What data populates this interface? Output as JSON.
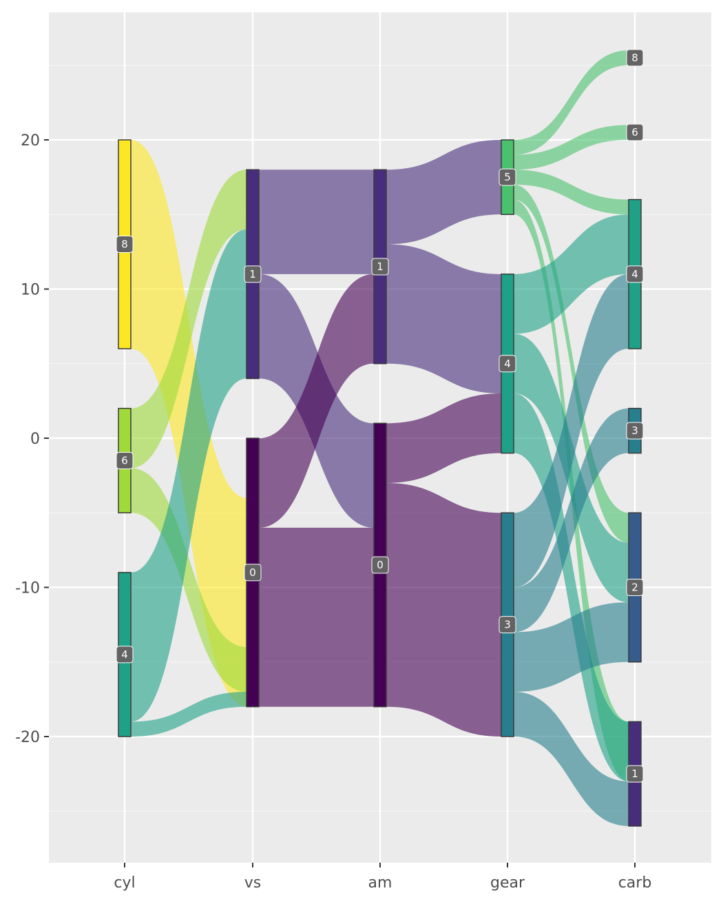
{
  "chart_data": {
    "type": "sankey",
    "title": "",
    "xlabel": "",
    "ylabel": "",
    "ylim": [
      -26,
      27
    ],
    "y_ticks": [
      20,
      10,
      0,
      -10,
      -20
    ],
    "y_tick_labels": [
      "20",
      "10",
      "0",
      "-10",
      "-20"
    ],
    "grid": true,
    "axes": [
      "cyl",
      "vs",
      "am",
      "gear",
      "carb"
    ],
    "nodes": [
      {
        "axis": "cyl",
        "label": "8",
        "y0": 6,
        "y1": 20,
        "color": "#fde725"
      },
      {
        "axis": "cyl",
        "label": "6",
        "y0": -5,
        "y1": 2,
        "color": "#9fda3a"
      },
      {
        "axis": "cyl",
        "label": "4",
        "y0": -20,
        "y1": -9,
        "color": "#1fa187"
      },
      {
        "axis": "vs",
        "label": "1",
        "y0": 4,
        "y1": 18,
        "color": "#472d7b"
      },
      {
        "axis": "vs",
        "label": "0",
        "y0": -18,
        "y1": 0,
        "color": "#440154"
      },
      {
        "axis": "am",
        "label": "1",
        "y0": 5,
        "y1": 18,
        "color": "#472d7b"
      },
      {
        "axis": "am",
        "label": "0",
        "y0": -18,
        "y1": 1,
        "color": "#440154"
      },
      {
        "axis": "gear",
        "label": "5",
        "y0": 15,
        "y1": 20,
        "color": "#4ac16d"
      },
      {
        "axis": "gear",
        "label": "4",
        "y0": -1,
        "y1": 11,
        "color": "#1fa187"
      },
      {
        "axis": "gear",
        "label": "3",
        "y0": -20,
        "y1": -5,
        "color": "#277f8e"
      },
      {
        "axis": "carb",
        "label": "8",
        "y0": 25,
        "y1": 26,
        "color": "#4ac16d"
      },
      {
        "axis": "carb",
        "label": "6",
        "y0": 20,
        "y1": 21,
        "color": "#4ac16d"
      },
      {
        "axis": "carb",
        "label": "4",
        "y0": 6,
        "y1": 16,
        "color": "#1fa187"
      },
      {
        "axis": "carb",
        "label": "3",
        "y0": -1,
        "y1": 2,
        "color": "#277f8e"
      },
      {
        "axis": "carb",
        "label": "2",
        "y0": -15,
        "y1": -5,
        "color": "#365c8d"
      },
      {
        "axis": "carb",
        "label": "1",
        "y0": -26,
        "y1": -19,
        "color": "#472d7b"
      }
    ],
    "flows": [
      {
        "from": 0,
        "to": 1,
        "a": [
          6,
          20
        ],
        "b": [
          -18,
          -4
        ],
        "color": "#fde725"
      },
      {
        "from": 0,
        "to": 1,
        "a": [
          -2,
          2
        ],
        "b": [
          14,
          18
        ],
        "color": "#9fda3a"
      },
      {
        "from": 0,
        "to": 1,
        "a": [
          -5,
          -2
        ],
        "b": [
          -17,
          -14
        ],
        "color": "#9fda3a"
      },
      {
        "from": 0,
        "to": 1,
        "a": [
          -19,
          -9
        ],
        "b": [
          4,
          14
        ],
        "color": "#1fa187"
      },
      {
        "from": 0,
        "to": 1,
        "a": [
          -20,
          -19
        ],
        "b": [
          -18,
          -17
        ],
        "color": "#1fa187"
      },
      {
        "from": 1,
        "to": 2,
        "a": [
          11,
          18
        ],
        "b": [
          11,
          18
        ],
        "color": "#472d7b"
      },
      {
        "from": 1,
        "to": 2,
        "a": [
          4,
          11
        ],
        "b": [
          -6,
          1
        ],
        "color": "#472d7b"
      },
      {
        "from": 1,
        "to": 2,
        "a": [
          -6,
          0
        ],
        "b": [
          5,
          11
        ],
        "color": "#440154"
      },
      {
        "from": 1,
        "to": 2,
        "a": [
          -18,
          -6
        ],
        "b": [
          -18,
          -6
        ],
        "color": "#440154"
      },
      {
        "from": 2,
        "to": 3,
        "a": [
          13,
          18
        ],
        "b": [
          15,
          20
        ],
        "color": "#472d7b"
      },
      {
        "from": 2,
        "to": 3,
        "a": [
          5,
          13
        ],
        "b": [
          3,
          11
        ],
        "color": "#472d7b"
      },
      {
        "from": 2,
        "to": 3,
        "a": [
          -3,
          1
        ],
        "b": [
          -1,
          3
        ],
        "color": "#440154"
      },
      {
        "from": 2,
        "to": 3,
        "a": [
          -18,
          -3
        ],
        "b": [
          -20,
          -5
        ],
        "color": "#440154"
      },
      {
        "from": 3,
        "to": 4,
        "a": [
          19,
          20
        ],
        "b": [
          25,
          26
        ],
        "color": "#4ac16d"
      },
      {
        "from": 3,
        "to": 4,
        "a": [
          18,
          19
        ],
        "b": [
          20,
          21
        ],
        "color": "#4ac16d"
      },
      {
        "from": 3,
        "to": 4,
        "a": [
          17,
          18
        ],
        "b": [
          15,
          16
        ],
        "color": "#4ac16d"
      },
      {
        "from": 3,
        "to": 4,
        "a": [
          16,
          17
        ],
        "b": [
          -7,
          -5
        ],
        "color": "#4ac16d"
      },
      {
        "from": 3,
        "to": 4,
        "a": [
          15,
          16
        ],
        "b": [
          -23,
          -19
        ],
        "color": "#4ac16d"
      },
      {
        "from": 3,
        "to": 4,
        "a": [
          7,
          11
        ],
        "b": [
          11,
          15
        ],
        "color": "#1fa187"
      },
      {
        "from": 3,
        "to": 4,
        "a": [
          3,
          7
        ],
        "b": [
          -11,
          -7
        ],
        "color": "#1fa187"
      },
      {
        "from": 3,
        "to": 4,
        "a": [
          -1,
          3
        ],
        "b": [
          -23,
          -19
        ],
        "color": "#1fa187"
      },
      {
        "from": 3,
        "to": 4,
        "a": [
          -10,
          -5
        ],
        "b": [
          6,
          11
        ],
        "color": "#277f8e"
      },
      {
        "from": 3,
        "to": 4,
        "a": [
          -13,
          -10
        ],
        "b": [
          -1,
          2
        ],
        "color": "#277f8e"
      },
      {
        "from": 3,
        "to": 4,
        "a": [
          -17,
          -13
        ],
        "b": [
          -15,
          -11
        ],
        "color": "#277f8e"
      },
      {
        "from": 3,
        "to": 4,
        "a": [
          -20,
          -17
        ],
        "b": [
          -26,
          -23
        ],
        "color": "#277f8e"
      }
    ]
  }
}
